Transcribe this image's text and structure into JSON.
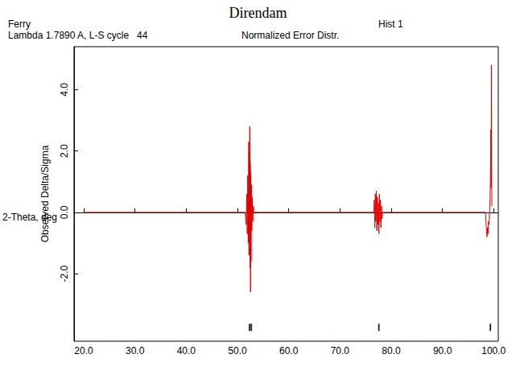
{
  "chart_data": {
    "type": "line",
    "title": "Direndam",
    "annotations": [
      "Ferry",
      "Hist 1",
      "Lambda 1.7890 A, L-S cycle   44",
      "Normalized Error Distr."
    ],
    "x_label": "2-Theta, deg",
    "y_label": "Observed Delta/Sigma",
    "color": "#e00000",
    "x": [
      20,
      51.5,
      51.7,
      51.8,
      51.9,
      52.0,
      52.1,
      52.2,
      52.25,
      52.3,
      52.35,
      52.4,
      52.45,
      52.5,
      52.55,
      52.6,
      52.65,
      52.7,
      52.8,
      52.9,
      53.0,
      53.1,
      53.2,
      76.6,
      76.7,
      76.8,
      76.9,
      77.0,
      77.1,
      77.2,
      77.3,
      77.4,
      77.5,
      77.6,
      77.7,
      77.8,
      77.9,
      78.0,
      78.1,
      78.2,
      78.3,
      98.4,
      98.5,
      98.6,
      98.7,
      98.8,
      98.9,
      99.0,
      99.1,
      99.2,
      99.3,
      99.4,
      99.45,
      99.5,
      99.55,
      99.6,
      99.65
    ],
    "values": [
      0,
      0,
      -0.4,
      0.6,
      -0.7,
      1.2,
      -1.0,
      2.3,
      -1.4,
      2.0,
      -0.8,
      2.8,
      -1.8,
      1.6,
      -2.6,
      1.3,
      -1.6,
      0.9,
      -0.6,
      0.5,
      -0.3,
      0.2,
      0,
      0,
      0.4,
      -0.5,
      0.6,
      -0.3,
      0.7,
      -0.6,
      0.5,
      -0.4,
      0.3,
      -0.7,
      0.6,
      -0.3,
      0.4,
      -0.5,
      0.2,
      -0.2,
      0,
      0,
      -0.3,
      -0.6,
      -0.8,
      -0.5,
      -0.7,
      -0.3,
      -0.4,
      0,
      0.5,
      1.5,
      2.7,
      0.8,
      4.8,
      1.0,
      0.2
    ],
    "reflections": {
      "x": [
        52.35,
        52.7,
        77.6,
        99.35
      ],
      "y": -3.75,
      "color": "#000000"
    },
    "xlim": [
      18.1,
      100.9
    ],
    "xticks": [
      {
        "value": 20,
        "label": "20.0"
      },
      {
        "value": 30,
        "label": "30.0"
      },
      {
        "value": 40,
        "label": "40.0"
      },
      {
        "value": 50,
        "label": "50.0"
      },
      {
        "value": 60,
        "label": "60.0"
      },
      {
        "value": 70,
        "label": "70.0"
      },
      {
        "value": 80,
        "label": "80.0"
      },
      {
        "value": 90,
        "label": "90.0"
      },
      {
        "value": 100,
        "label": "100.0"
      }
    ],
    "ylim": [
      -4.2,
      5.4
    ],
    "yticks": [
      {
        "value": -2,
        "label": "-2.0"
      },
      {
        "value": 0,
        "label": "0.0"
      },
      {
        "value": 2,
        "label": "2.0"
      },
      {
        "value": 4,
        "label": "4.0"
      }
    ],
    "grid": false
  }
}
